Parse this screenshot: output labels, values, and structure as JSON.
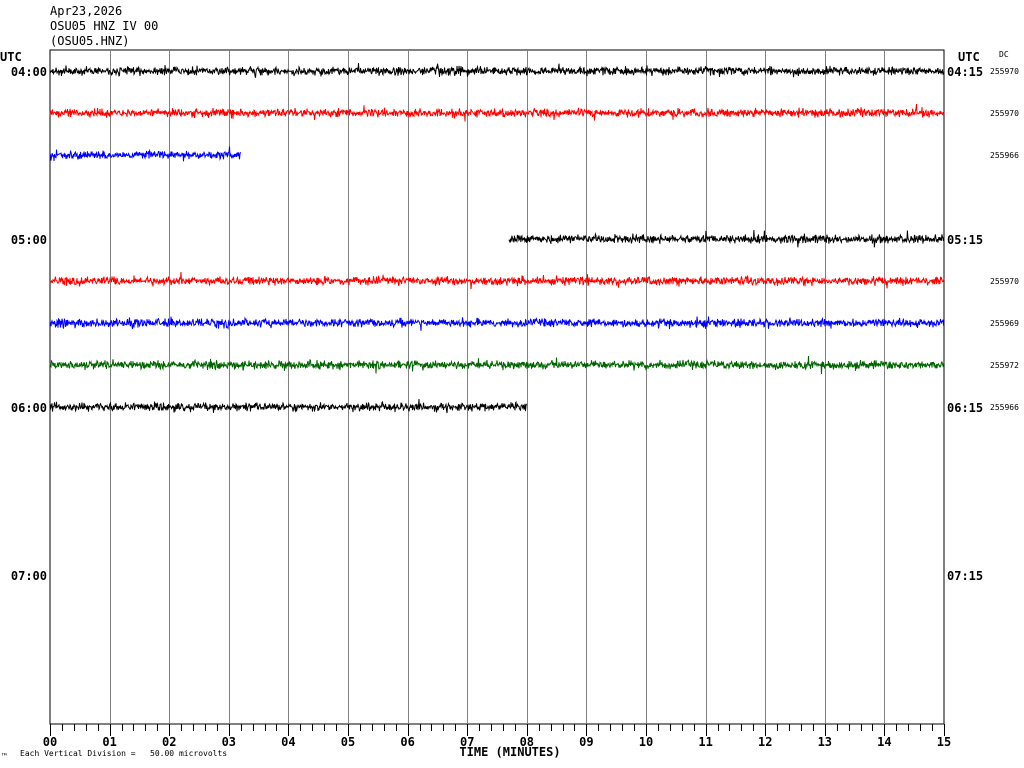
{
  "header": {
    "date": "Apr23,2026",
    "station": "OSU05 HNZ IV 00",
    "channel_code": "(OSU05.HNZ)"
  },
  "left_axis_title": "UTC",
  "right_axis_title": "UTC",
  "dc_label": "DC",
  "footer": {
    "vertical_division": "Each Vertical Division =   50.00 microvolts",
    "corner_mark": "™"
  },
  "chart_data": {
    "type": "line",
    "title": "",
    "xlabel": "TIME (MINUTES)",
    "ylabel": "",
    "xlim": [
      0,
      15
    ],
    "x_ticks": [
      "00",
      "01",
      "02",
      "03",
      "04",
      "05",
      "06",
      "07",
      "08",
      "09",
      "10",
      "11",
      "12",
      "13",
      "14",
      "15"
    ],
    "hour_labels_left": [
      "04:00",
      "05:00",
      "06:00",
      "07:00"
    ],
    "hour_labels_right": [
      "04:15",
      "05:15",
      "06:15",
      "07:15"
    ],
    "grid": true,
    "series": [
      {
        "row": 0,
        "start_min": 0.0,
        "end_min": 15.0,
        "color": "#000000",
        "dc": "255970"
      },
      {
        "row": 1,
        "start_min": 0.0,
        "end_min": 15.0,
        "color": "#ff0000",
        "dc": "255970"
      },
      {
        "row": 2,
        "start_min": 0.0,
        "end_min": 3.2,
        "color": "#0000ff",
        "dc": "255966"
      },
      {
        "row": 4,
        "start_min": 7.7,
        "end_min": 15.0,
        "color": "#000000",
        "dc": ""
      },
      {
        "row": 5,
        "start_min": 0.0,
        "end_min": 15.0,
        "color": "#ff0000",
        "dc": "255970"
      },
      {
        "row": 6,
        "start_min": 0.0,
        "end_min": 15.0,
        "color": "#0000ff",
        "dc": "255969"
      },
      {
        "row": 7,
        "start_min": 0.0,
        "end_min": 15.0,
        "color": "#006400",
        "dc": "255972"
      },
      {
        "row": 8,
        "start_min": 0.0,
        "end_min": 8.0,
        "color": "#000000",
        "dc": "255966"
      }
    ]
  }
}
